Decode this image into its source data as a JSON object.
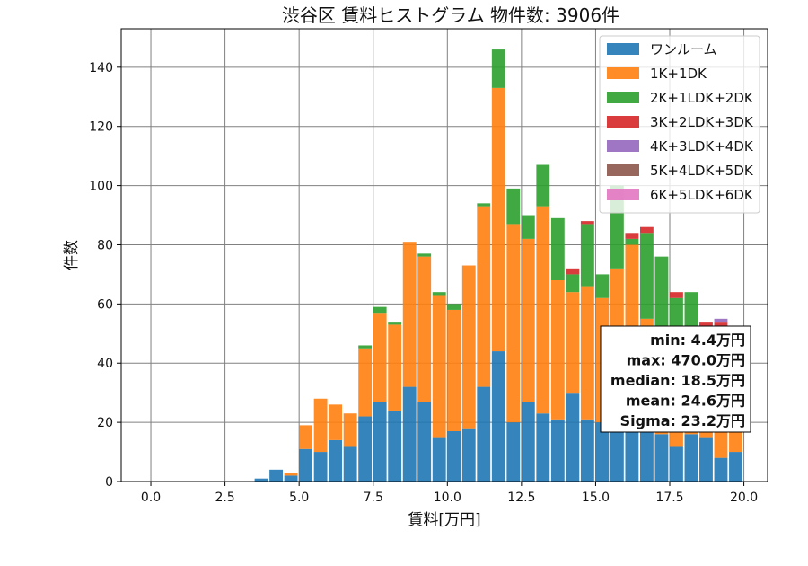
{
  "chart_data": {
    "type": "bar",
    "stacked": true,
    "title": "渋谷区 賃料ヒストグラム  物件数: 3906件",
    "xlabel": "賃料[万円]",
    "ylabel": "件数",
    "xlim": [
      -1.0,
      20.8
    ],
    "ylim": [
      0,
      153
    ],
    "xticks": [
      0.0,
      2.5,
      5.0,
      7.5,
      10.0,
      12.5,
      15.0,
      17.5,
      20.0
    ],
    "xtick_labels": [
      "0.0",
      "2.5",
      "5.0",
      "7.5",
      "10.0",
      "12.5",
      "15.0",
      "17.5",
      "20.0"
    ],
    "yticks": [
      0,
      20,
      40,
      60,
      80,
      100,
      120,
      140
    ],
    "ytick_labels": [
      "0",
      "20",
      "40",
      "60",
      "80",
      "100",
      "120",
      "140"
    ],
    "grid": true,
    "legend_position": "top-right",
    "bin_width": 0.5,
    "bin_starts": [
      3.5,
      4.0,
      4.5,
      5.0,
      5.5,
      6.0,
      6.5,
      7.0,
      7.5,
      8.0,
      8.5,
      9.0,
      9.5,
      10.0,
      10.5,
      11.0,
      11.5,
      12.0,
      12.5,
      13.0,
      13.5,
      14.0,
      14.5,
      15.0,
      15.5,
      16.0,
      16.5,
      17.0,
      17.5,
      18.0,
      18.5,
      19.0,
      19.5
    ],
    "series": [
      {
        "name": "ワンルーム",
        "color": "#1f77b4",
        "values": [
          1,
          4,
          2,
          11,
          10,
          14,
          12,
          22,
          27,
          24,
          32,
          27,
          15,
          17,
          18,
          32,
          44,
          20,
          27,
          23,
          21,
          30,
          21,
          20,
          25,
          22,
          20,
          16,
          12,
          16,
          15,
          8,
          10
        ]
      },
      {
        "name": "1K+1DK",
        "color": "#ff7f0e",
        "values": [
          0,
          0,
          1,
          8,
          18,
          12,
          11,
          23,
          30,
          29,
          49,
          49,
          48,
          41,
          55,
          61,
          89,
          67,
          55,
          70,
          47,
          34,
          45,
          42,
          47,
          58,
          35,
          34,
          30,
          24,
          22,
          26,
          20
        ]
      },
      {
        "name": "2K+1LDK+2DK",
        "color": "#2ca02c",
        "values": [
          0,
          0,
          0,
          0,
          0,
          0,
          0,
          1,
          2,
          1,
          0,
          1,
          1,
          2,
          0,
          1,
          13,
          12,
          8,
          14,
          21,
          6,
          21,
          8,
          28,
          2,
          29,
          26,
          20,
          24,
          15,
          18,
          20
        ]
      },
      {
        "name": "3K+2LDK+3DK",
        "color": "#d62728",
        "values": [
          0,
          0,
          0,
          0,
          0,
          0,
          0,
          0,
          0,
          0,
          0,
          0,
          0,
          0,
          0,
          0,
          0,
          0,
          0,
          0,
          0,
          2,
          1,
          0,
          0,
          2,
          2,
          0,
          2,
          0,
          2,
          2,
          0
        ]
      },
      {
        "name": "4K+3LDK+4DK",
        "color": "#9467bd",
        "values": [
          0,
          0,
          0,
          0,
          0,
          0,
          0,
          0,
          0,
          0,
          0,
          0,
          0,
          0,
          0,
          0,
          0,
          0,
          0,
          0,
          0,
          0,
          0,
          0,
          0,
          0,
          0,
          0,
          0,
          0,
          0,
          1,
          0
        ]
      },
      {
        "name": "5K+4LDK+5DK",
        "color": "#8c564b",
        "values": [
          0,
          0,
          0,
          0,
          0,
          0,
          0,
          0,
          0,
          0,
          0,
          0,
          0,
          0,
          0,
          0,
          0,
          0,
          0,
          0,
          0,
          0,
          0,
          0,
          0,
          0,
          0,
          0,
          0,
          0,
          0,
          0,
          0
        ]
      },
      {
        "name": "6K+5LDK+6DK",
        "color": "#e377c2",
        "values": [
          0,
          0,
          0,
          0,
          0,
          0,
          0,
          0,
          0,
          0,
          0,
          0,
          0,
          0,
          0,
          0,
          0,
          0,
          0,
          0,
          0,
          0,
          0,
          0,
          0,
          0,
          0,
          0,
          0,
          0,
          0,
          0,
          0
        ]
      }
    ],
    "annotation": [
      "min: 4.4万円",
      "max: 470.0万円",
      "median: 18.5万円",
      "mean: 24.6万円",
      "Sigma: 23.2万円"
    ]
  }
}
